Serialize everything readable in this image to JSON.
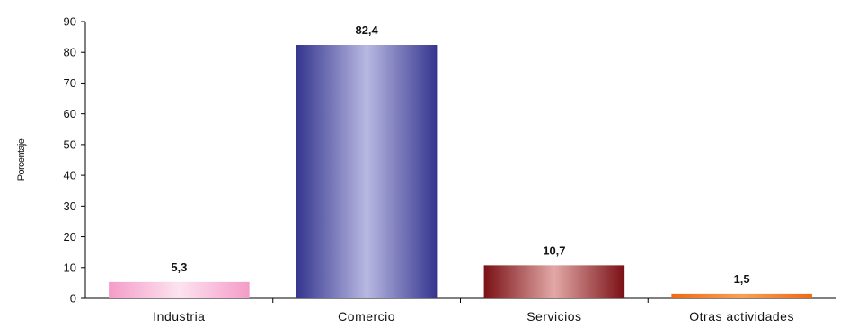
{
  "chart_data": {
    "type": "bar",
    "title": "",
    "xlabel": "",
    "ylabel": "Porcentaje",
    "ylim": [
      0,
      90
    ],
    "yticks": [
      0,
      10,
      20,
      30,
      40,
      50,
      60,
      70,
      80,
      90
    ],
    "grid": false,
    "categories": [
      "Industria",
      "Comercio",
      "Servicios",
      "Otras actividades"
    ],
    "values": [
      5.3,
      82.4,
      10.7,
      1.5
    ],
    "value_labels": [
      "5,3",
      "82,4",
      "10,7",
      "1,5"
    ],
    "bar_colors": [
      "#f49cc8",
      "#35358f",
      "#7a1015",
      "#ef6a12"
    ],
    "bar_highlights": [
      "#fde3ef",
      "#b8b8e2",
      "#e2a8a6",
      "#f8a055"
    ]
  }
}
